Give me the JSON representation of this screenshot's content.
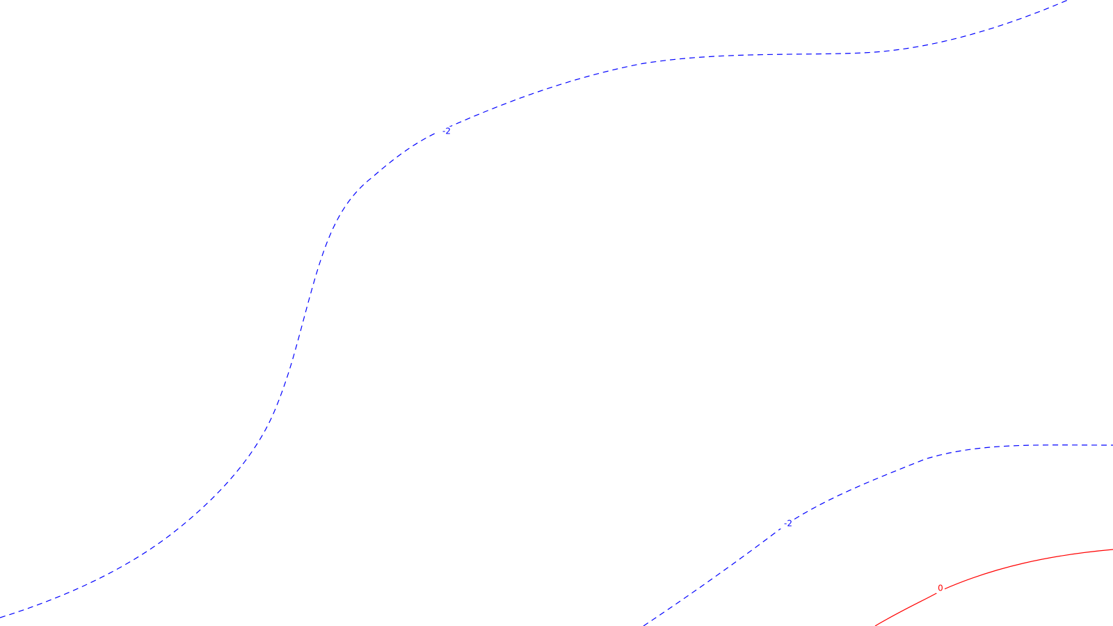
{
  "colors": {
    "background": "#ffffff",
    "negative_contour": "#0000ff",
    "zero_contour": "#ff0000"
  },
  "contours": [
    {
      "id": "upper-negative-2",
      "level_label": "-2",
      "color": "#0000ff",
      "style": "dashed"
    },
    {
      "id": "lower-negative-2",
      "level_label": "-2",
      "color": "#0000ff",
      "style": "dashed"
    },
    {
      "id": "zero",
      "level_label": "0",
      "color": "#ff0000",
      "style": "solid"
    }
  ]
}
